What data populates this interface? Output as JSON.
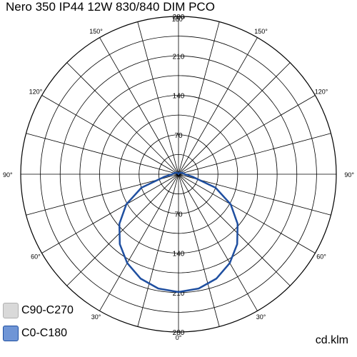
{
  "chart_data": {
    "type": "polar",
    "title": "Nero 350 IP44 12W 830/840 DIM PCO",
    "unit_label": "cd.klm",
    "radial_ticks": [
      70,
      140,
      210,
      280
    ],
    "radial_max": 280,
    "angle_labels": [
      "0°",
      "30°",
      "60°",
      "90°",
      "120°",
      "150°",
      "180°",
      "150°",
      "120°",
      "90°",
      "60°",
      "30°"
    ],
    "series": [
      {
        "name": "C90-C270",
        "color": "#cccccc",
        "angles": [],
        "values": []
      },
      {
        "name": "C0-C180",
        "color": "#1f4fa0",
        "angles": [
          0,
          10,
          20,
          30,
          40,
          50,
          60,
          70,
          80,
          90,
          95,
          100,
          105,
          110,
          120,
          130,
          140,
          150,
          160,
          170,
          180
        ],
        "values": [
          209,
          206,
          197,
          182,
          162,
          137,
          107,
          70,
          25,
          11,
          10,
          9,
          8,
          7,
          5,
          4,
          3,
          2,
          1,
          1,
          0
        ]
      }
    ],
    "legend": [
      {
        "label": "C90-C270",
        "fill": "#d9d9d9",
        "border": "#b0b0b0"
      },
      {
        "label": "C0-C180",
        "fill": "#6f95d6",
        "border": "#1f4fa0"
      }
    ]
  }
}
